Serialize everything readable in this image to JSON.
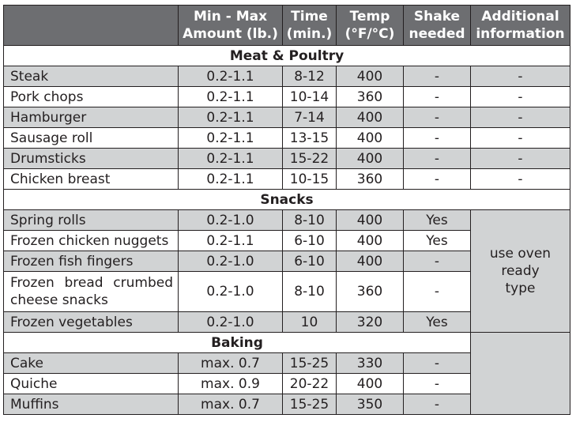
{
  "headers": {
    "amount": "Min - Max Amount (lb.)",
    "time": "Time (min.)",
    "temp": "Temp (°F/°C)",
    "shake": "Shake needed",
    "info": "Additional information"
  },
  "sections": {
    "meat": "Meat & Poultry",
    "snacks": "Snacks",
    "baking": "Baking"
  },
  "meat_rows": [
    {
      "food": "Steak",
      "amount": "0.2-1.1",
      "time": "8-12",
      "temp": "400",
      "shake": "-",
      "info": "-"
    },
    {
      "food": "Pork chops",
      "amount": "0.2-1.1",
      "time": "10-14",
      "temp": "360",
      "shake": "-",
      "info": "-"
    },
    {
      "food": "Hamburger",
      "amount": "0.2-1.1",
      "time": "7-14",
      "temp": "400",
      "shake": "-",
      "info": "-"
    },
    {
      "food": "Sausage roll",
      "amount": "0.2-1.1",
      "time": "13-15",
      "temp": "400",
      "shake": "-",
      "info": "-"
    },
    {
      "food": "Drumsticks",
      "amount": "0.2-1.1",
      "time": "15-22",
      "temp": "400",
      "shake": "-",
      "info": "-"
    },
    {
      "food": "Chicken breast",
      "amount": "0.2-1.1",
      "time": "10-15",
      "temp": "360",
      "shake": "-",
      "info": "-"
    }
  ],
  "snack_rows": [
    {
      "food": "Spring rolls",
      "amount": "0.2-1.0",
      "time": "8-10",
      "temp": "400",
      "shake": "Yes"
    },
    {
      "food": "Frozen chicken nuggets",
      "amount": "0.2-1.1",
      "time": "6-10",
      "temp": "400",
      "shake": "Yes"
    },
    {
      "food": "Frozen fish fingers",
      "amount": "0.2-1.0",
      "time": "6-10",
      "temp": "400",
      "shake": "-"
    },
    {
      "food_line1": "Frozen bread crumbed",
      "food_line2": "cheese snacks",
      "amount": "0.2-1.0",
      "time": "8-10",
      "temp": "360",
      "shake": "-"
    },
    {
      "food": "Frozen vegetables",
      "amount": "0.2-1.0",
      "time": "10",
      "temp": "320",
      "shake": "Yes"
    }
  ],
  "snacks_info": "use oven ready type",
  "baking_rows": [
    {
      "food": "Cake",
      "amount": "max. 0.7",
      "time": "15-25",
      "temp": "330",
      "shake": "-"
    },
    {
      "food": "Quiche",
      "amount": "max. 0.9",
      "time": "20-22",
      "temp": "400",
      "shake": "-"
    },
    {
      "food": "Muffins",
      "amount": "max. 0.7",
      "time": "15-25",
      "temp": "350",
      "shake": "-"
    }
  ],
  "colors": {
    "header_bg": "#6d6e71",
    "row_shade": "#d1d3d4",
    "text": "#231f20"
  }
}
